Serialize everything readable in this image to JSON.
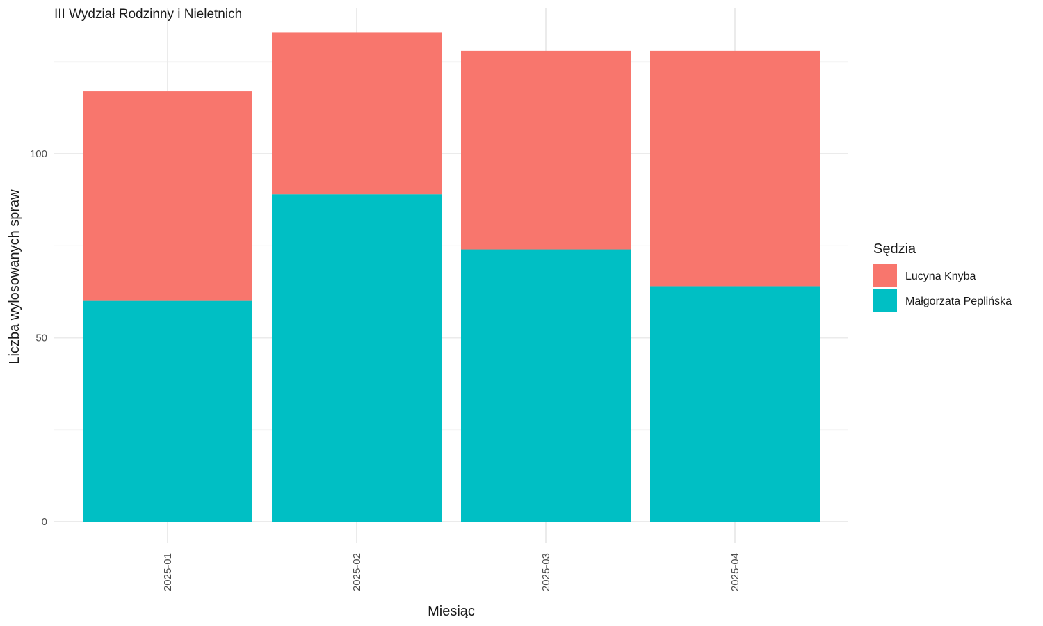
{
  "chart_data": {
    "type": "bar",
    "stacked": true,
    "title": "III Wydział Rodzinny i Nieletnich",
    "xlabel": "Miesiąc",
    "ylabel": "Liczba wylosowanych spraw",
    "categories": [
      "2025-01",
      "2025-02",
      "2025-03",
      "2025-04"
    ],
    "series": [
      {
        "name": "Małgorzata Peplińska",
        "values": [
          60,
          89,
          74,
          64
        ],
        "color": "#00BFC4"
      },
      {
        "name": "Lucyna Knyba",
        "values": [
          57,
          44,
          54,
          64
        ],
        "color": "#F8766D"
      }
    ],
    "ylim": [
      0,
      140
    ],
    "yticks": [
      0,
      50,
      100
    ],
    "grid": true,
    "legend": {
      "title": "Sędzia",
      "placement": "right",
      "order": [
        "Lucyna Knyba",
        "Małgorzata Peplińska"
      ]
    }
  }
}
